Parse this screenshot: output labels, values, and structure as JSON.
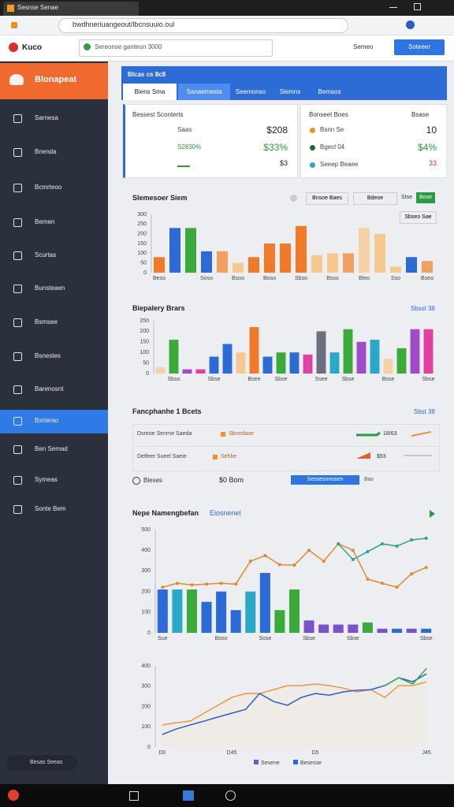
{
  "browser": {
    "tab": "Sesnse Senae",
    "url": "bwdhneriuangeout/lbcnsuuio.oul"
  },
  "header": {
    "logo": "Kuco",
    "search": "Sereonse ganteun 3000",
    "user": "Semeo",
    "button": "Soteeer"
  },
  "sidebar": {
    "brand": "Blonapeat",
    "items": [
      "Sarnesa",
      "Bnenda",
      "Bcmrteoo",
      "Bemen",
      "Scurtas",
      "Bunsteaen",
      "Bsmsee",
      "Bsnestes",
      "Barenosnt",
      "Bxrterao",
      "Ben Semad",
      "Symeas",
      "Sonte Bem"
    ],
    "active": 9,
    "footer": "Besas Seeas"
  },
  "panel_summary": {
    "title": "Blcas cs 8c8",
    "tabs": [
      "Biens Sma",
      "Sanaemesta",
      "Seemonso",
      "Slemns",
      "Bemsos"
    ],
    "active_tab": 0,
    "cards": [
      {
        "title": "Bessest Sconterts",
        "rows": [
          {
            "label": "Saas",
            "value": "$208"
          },
          {
            "label": "S2830%",
            "value": "$33%"
          },
          {
            "value": "$3"
          }
        ]
      },
      {
        "title": "Bonseet Boes",
        "tag": "Bsase",
        "rows": [
          {
            "label": "Bsnn Se",
            "value": "10"
          },
          {
            "label": "Bgecl 04",
            "value": "$4%"
          },
          {
            "label": "Seeep Beaee",
            "value": "33"
          }
        ]
      }
    ]
  },
  "panel_sales": {
    "title": "Slemesoer Siem",
    "controls": [
      "Bnsoe Baes",
      "Bdeoe",
      "Stse"
    ],
    "button": "Bose",
    "button2": "Sbseo Sae"
  },
  "panel_bars": {
    "title": "Biepalery Brars",
    "link": "Sbsst 38"
  },
  "panel_list": {
    "title": "Fancphanhe 1 Bcets",
    "link": "Sbst 38",
    "rows": [
      {
        "text": "Dsreoe Senrne Saeda",
        "tag": "Sbnedaoe",
        "value": "18/63"
      },
      {
        "text": "Detfeer Sueel Saeie",
        "tag": "Sehbe",
        "value": "$93"
      }
    ],
    "footer": {
      "label": "Bleses",
      "value": "$0 Bom",
      "button": "Sessesnnosen",
      "note": "Bas"
    }
  },
  "panel_trends": {
    "title": "Nepe Namengbefan",
    "subtitle": "Eiosnenel"
  },
  "chart_data": [
    {
      "type": "bar",
      "ylim": [
        0,
        300
      ],
      "yticks": [
        0,
        50,
        100,
        150,
        200,
        250,
        300
      ],
      "values": [
        80,
        230,
        230,
        110,
        110,
        50,
        80,
        150,
        150,
        240,
        90,
        100,
        100,
        230,
        200,
        30,
        80,
        60
      ],
      "colors": [
        "#f07a2a",
        "#2c6bd6",
        "#3aaa3a",
        "#2c6bd6",
        "#f0a060",
        "#f5c890",
        "#f07a2a",
        "#f07a2a",
        "#f07a2a",
        "#f07a2a",
        "#f5c890",
        "#f5c890",
        "#f0a060",
        "#f5d3a8",
        "#f5c890",
        "#f5c890",
        "#2c6bd6",
        "#f0a060"
      ],
      "categories": [
        "Beso",
        null,
        null,
        "Soso",
        null,
        "Bsoo",
        null,
        "Boso",
        null,
        "Sbso",
        null,
        "Bsso",
        null,
        "Bleo",
        null,
        "Sso",
        null,
        "Bseo"
      ]
    },
    {
      "type": "bar",
      "ylim": [
        0,
        250
      ],
      "yticks": [
        0,
        50,
        100,
        150,
        200,
        250
      ],
      "values": [
        30,
        160,
        20,
        20,
        80,
        140,
        100,
        220,
        80,
        100,
        100,
        90,
        200,
        100,
        210,
        150,
        160,
        70,
        120,
        210,
        210
      ],
      "colors": [
        "#f5d3a8",
        "#3aaa3a",
        "#a04cc8",
        "#e040a0",
        "#2c6bd6",
        "#2c6bd6",
        "#f5c890",
        "#f07a2a",
        "#2c6bd6",
        "#3aaa3a",
        "#2c6bd6",
        "#e040a0",
        "#6a7080",
        "#2aa8c8",
        "#3aaa3a",
        "#a04cc8",
        "#2aa8c8",
        "#f5d3a8",
        "#3aaa3a",
        "#a04cc8",
        "#e040a0"
      ],
      "categories": [
        null,
        "Sbso",
        null,
        null,
        "Sbse",
        null,
        null,
        "Bsee",
        null,
        "Sbse",
        null,
        null,
        "Ssee",
        null,
        "Sbse",
        null,
        null,
        "Bsse",
        null,
        null,
        "Sbse"
      ]
    },
    {
      "type": "combo",
      "ylim": [
        0,
        500
      ],
      "yticks": [
        0,
        100,
        200,
        300,
        400,
        500
      ],
      "values": [
        210,
        210,
        210,
        150,
        200,
        110,
        200,
        290,
        110,
        210,
        60,
        40,
        40,
        40,
        50,
        20,
        20,
        20,
        20
      ],
      "colors": [
        "#2c6bd6",
        "#2aa8c8",
        "#3aaa3a",
        "#2c6bd6",
        "#2c6bd6",
        "#2c6bd6",
        "#2aa8c8",
        "#2c6bd6",
        "#3aaa3a",
        "#3aaa3a",
        "#7b52c9",
        "#7b52c9",
        "#7b52c9",
        "#7b52c9",
        "#3aaa3a",
        "#7b52c9",
        "#2c6bd6",
        "#7b52c9",
        "#2c6bd6"
      ],
      "categories": [
        "Sue",
        null,
        null,
        null,
        "Boso",
        null,
        null,
        "Sose",
        null,
        null,
        "Sbse",
        null,
        null,
        "Sbse",
        null,
        null,
        null,
        null,
        "Sbse"
      ],
      "series": [
        {
          "color": "#e08a30",
          "values": [
            221,
            240,
            232,
            236,
            240,
            236,
            347,
            374,
            330,
            328,
            400,
            347,
            431,
            400,
            260,
            240,
            221,
            286,
            317
          ]
        },
        {
          "color": "#2aa198",
          "values": [
            null,
            null,
            null,
            null,
            null,
            null,
            null,
            null,
            null,
            null,
            null,
            null,
            431,
            355,
            393,
            431,
            420,
            450,
            458
          ]
        }
      ]
    },
    {
      "type": "area",
      "ylim": [
        0,
        400
      ],
      "yticks": [
        0,
        100,
        200,
        300,
        400
      ],
      "categories": [
        "D0",
        null,
        null,
        null,
        null,
        "D45",
        null,
        null,
        null,
        null,
        null,
        "D5",
        null,
        null,
        null,
        null,
        null,
        null,
        null,
        "J45"
      ],
      "series": [
        {
          "color": "#e89a40",
          "values": [
            109,
            120,
            128,
            167,
            206,
            245,
            264,
            264,
            283,
            303,
            303,
            311,
            303,
            291,
            272,
            283,
            245,
            303,
            303,
            322
          ]
        },
        {
          "color": "#2c5cc6",
          "values": [
            62,
            89,
            109,
            128,
            148,
            167,
            186,
            264,
            225,
            206,
            245,
            264,
            256,
            272,
            280,
            283,
            303,
            342,
            322,
            361
          ]
        },
        {
          "color": "#3aaa3a",
          "values": [
            null,
            null,
            null,
            null,
            null,
            null,
            null,
            null,
            null,
            null,
            null,
            null,
            null,
            null,
            null,
            null,
            303,
            342,
            311,
            388
          ]
        }
      ],
      "legend": [
        {
          "name": "Sesene",
          "color": "#7b52c9"
        },
        {
          "name": "Besesse",
          "color": "#2c6bd6"
        }
      ]
    }
  ]
}
